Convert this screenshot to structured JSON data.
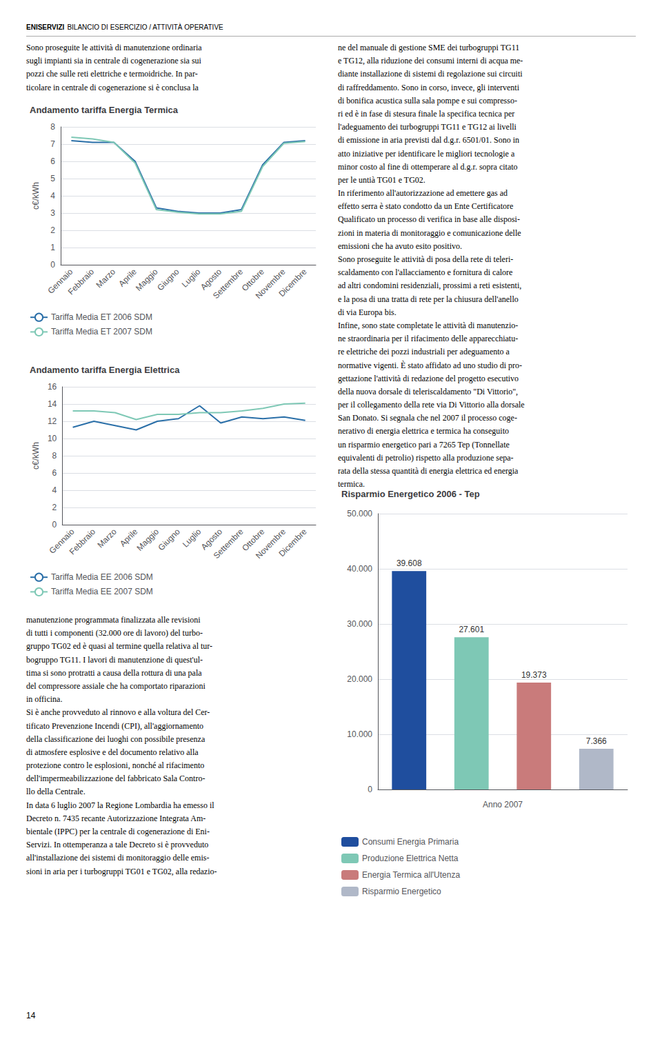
{
  "annotations": [
    "ENISERVIZI",
    "BILANCIO DI ESERCIZIO / ATTIVITÀ OPERATIVE",
    "Sono proseguite le attività di manutenzione ordinaria\nsugli impianti sia in centrale di cogenerazione sia sui\npozzi che sulle reti elettriche e termoidriche. In par-\nticolare in centrale di cogenerazione si è conclusa la",
    "manutenzione programmata finalizzata alle revisioni\ndi tutti i componenti (32.000 ore di lavoro) del turbo-\ngruppo TG02 ed è quasi al termine quella relativa al tur-\nbogruppo TG11. I lavori di manutenzione di quest'ul-\ntima si sono protratti a causa della rottura di una pala\ndel compressore assiale che ha comportato riparazioni\nin officina.\nSi è anche provveduto al rinnovo e alla voltura del Cer-\ntificato Prevenzione Incendi (CPI), all'aggiornamento\ndella classificazione dei luoghi con possibile presenza\ndi atmosfere esplosive e del documento relativo alla\nprotezione contro le esplosioni, nonché al rifacimento\ndell'impermeabilizzazione del fabbricato Sala Contro-\nllo della Centrale.\nIn data 6 luglio 2007 la Regione Lombardia ha emesso il\nDecreto n. 7435 recante Autorizzazione Integrata Am-\nbientale (IPPC) per la centrale di cogenerazione di Eni-\nServizi. In ottemperanza a tale Decreto si è provveduto\nall'installazione dei sistemi di monitoraggio delle emis-\nsioni in aria per i turbogruppi TG01 e TG02, alla redazio-",
    "ne del manuale di gestione SME dei turbogruppi TG11\ne TG12, alla riduzione dei consumi interni di acqua me-\ndiante installazione di sistemi di regolazione sui circuiti\ndi raffreddamento. Sono in corso, invece, gli interventi\ndi bonifica acustica sulla sala pompe e sui compresso-\nri ed è in fase di stesura finale la specifica tecnica per\nl'adeguamento dei turbogruppi TG11 e TG12 ai livelli\ndi emissione in aria previsti dal d.g.r. 6501/01. Sono in\natto iniziative per identificare le migliori tecnologie a\nminor costo al fine di ottemperare al d.g.r. sopra citato\nper le untià TG01 e TG02.\nIn riferimento all'autorizzazione ad emettere gas ad\neffetto serra è stato condotto da un Ente Certificatore\nQualificato un processo di verifica in base alle disposi-\nzioni in materia di monitoraggio e comunicazione delle\nemissioni che ha avuto esito positivo.\nSono proseguite le attività di posa della rete di teleri-\nscaldamento con l'allacciamento e fornitura di calore\nad altri condomini residenziali, prossimi a reti esistenti,\ne la posa di una tratta di rete per la chiusura dell'anello\ndi via Europa bis.\nInfine, sono state completate le attività di manutenzio-\nne straordinaria per il rifacimento delle apparecchiatu-\nre elettriche dei pozzi industriali per adeguamento a\nnormative vigenti. È stato affidato ad uno studio di pro-\ngettazione l'attività di redazione del progetto esecutivo\ndella nuova dorsale di teleriscaldamento \"Di Vittorio\",\nper il collegamento della rete via Di Vittorio alla dorsale\nSan Donato. Si segnala che nel 2007 il processo coge-\nnerativo di energia elettrica e termica ha conseguito\nun risparmio energetico pari a 7265 Tep (Tonnellate\nequivalenti di petrolio) rispetto alla produzione sepa-\nrata della stessa quantità di energia elettrica ed energia\ntermica.",
    "14"
  ],
  "chart_data": [
    {
      "type": "line",
      "title": "Andamento tariffa Energia Termica",
      "ylabel": "c€/kWh",
      "categories": [
        "Gennaio",
        "Febbraio",
        "Marzo",
        "Aprile",
        "Maggio",
        "Giugno",
        "Luglio",
        "Agosto",
        "Settembre",
        "Ottobre",
        "Novembre",
        "Dicembre"
      ],
      "series": [
        {
          "name": "Tariffa Media ET 2006 SDM",
          "color": "#2a6fa8",
          "values": [
            7.2,
            7.1,
            7.1,
            6.0,
            3.3,
            3.1,
            3.0,
            3.0,
            3.2,
            5.8,
            7.1,
            7.2
          ]
        },
        {
          "name": "Tariffa Media ET 2007 SDM",
          "color": "#7ec8b5",
          "values": [
            7.4,
            7.3,
            7.1,
            5.9,
            3.2,
            3.05,
            2.95,
            2.95,
            3.1,
            5.7,
            7.05,
            7.15
          ]
        }
      ],
      "ylim": [
        0,
        8
      ],
      "yticks": [
        0,
        1,
        2,
        3,
        4,
        5,
        6,
        7,
        8
      ],
      "grid": true,
      "legend": "bottom left"
    },
    {
      "type": "line",
      "title": "Andamento tariffa Energia Elettrica",
      "ylabel": "c€/kWh",
      "categories": [
        "Gennaio",
        "Febbraio",
        "Marzo",
        "Aprile",
        "Maggio",
        "Giugno",
        "Luglio",
        "Agosto",
        "Settembre",
        "Ottobre",
        "Novembre",
        "Dicembre"
      ],
      "series": [
        {
          "name": "Tariffa Media EE 2006 SDM",
          "color": "#2a6fa8",
          "values": [
            11.3,
            12.0,
            11.5,
            11.0,
            12.0,
            12.3,
            13.8,
            11.8,
            12.5,
            12.3,
            12.5,
            12.1
          ]
        },
        {
          "name": "Tariffa Media EE 2007 SDM",
          "color": "#7ec8b5",
          "values": [
            13.2,
            13.2,
            13.0,
            12.2,
            12.8,
            12.8,
            13.0,
            13.0,
            13.2,
            13.5,
            14.0,
            14.1
          ]
        }
      ],
      "ylim": [
        0,
        16
      ],
      "yticks": [
        0,
        2,
        4,
        6,
        8,
        10,
        12,
        14,
        16
      ],
      "grid": true,
      "legend": "bottom left"
    },
    {
      "type": "bar",
      "title": "Risparmio Energetico 2006 - Tep",
      "xlabel": "Anno 2007",
      "categories": [
        "Consumi Energia Primaria",
        "Produzione Elettrica Netta",
        "Energia Termica all'Utenza",
        "Risparmio Energetico"
      ],
      "values": [
        39608,
        27601,
        19373,
        7366
      ],
      "value_labels": [
        "39.608",
        "27.601",
        "19.373",
        "7.366"
      ],
      "colors": [
        "#1f4e9e",
        "#7ec8b5",
        "#c97b7b",
        "#b0b8c8"
      ],
      "ylim": [
        0,
        50000
      ],
      "yticks": [
        0,
        {
          "value": 10000,
          "label": "10.000"
        },
        {
          "value": 20000,
          "label": "20.000"
        },
        {
          "value": 30000,
          "label": "30.000"
        },
        {
          "value": 40000,
          "label": "40.000"
        },
        {
          "value": 50000,
          "label": "50.000"
        }
      ],
      "grid": true,
      "data_labels": true,
      "tick_labels": "y",
      "legend": "bottom left"
    }
  ]
}
